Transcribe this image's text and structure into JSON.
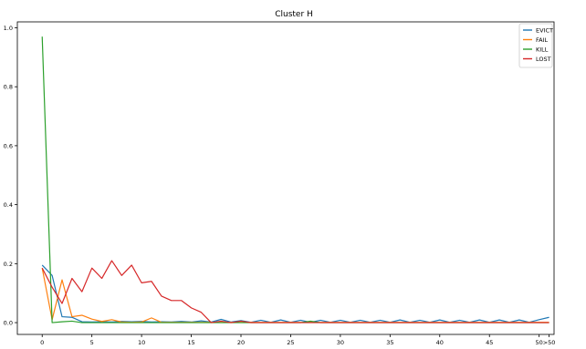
{
  "chart_data": {
    "type": "line",
    "title": "Cluster H",
    "xlabel": "",
    "ylabel": "",
    "x": [
      0,
      1,
      2,
      3,
      4,
      5,
      6,
      7,
      8,
      9,
      10,
      11,
      12,
      13,
      14,
      15,
      16,
      17,
      18,
      19,
      20,
      21,
      22,
      23,
      24,
      25,
      26,
      27,
      28,
      29,
      30,
      31,
      32,
      33,
      34,
      35,
      36,
      37,
      38,
      39,
      40,
      41,
      42,
      43,
      44,
      45,
      46,
      47,
      48,
      49,
      50,
      51
    ],
    "xlim": [
      -2.5,
      51.5
    ],
    "ylim": [
      -0.04,
      1.02
    ],
    "xticks": [
      {
        "value": 0,
        "label": "0"
      },
      {
        "value": 5,
        "label": "5"
      },
      {
        "value": 10,
        "label": "10"
      },
      {
        "value": 15,
        "label": "15"
      },
      {
        "value": 20,
        "label": "20"
      },
      {
        "value": 25,
        "label": "25"
      },
      {
        "value": 30,
        "label": "30"
      },
      {
        "value": 35,
        "label": "35"
      },
      {
        "value": 40,
        "label": "40"
      },
      {
        "value": 45,
        "label": "45"
      },
      {
        "value": 50,
        "label": "50"
      },
      {
        "value": 51,
        "label": ">50"
      }
    ],
    "yticks": [
      {
        "value": 0.0,
        "label": "0.0"
      },
      {
        "value": 0.2,
        "label": "0.2"
      },
      {
        "value": 0.4,
        "label": "0.4"
      },
      {
        "value": 0.6,
        "label": "0.6"
      },
      {
        "value": 0.8,
        "label": "0.8"
      },
      {
        "value": 1.0,
        "label": "1.0"
      }
    ],
    "grid": false,
    "legend_position": "top-right",
    "series": [
      {
        "name": "EVICT",
        "color": "#1f77b4",
        "values": [
          0.195,
          0.16,
          0.02,
          0.018,
          0.003,
          0.002,
          0.003,
          0.002,
          0.004,
          0.003,
          0.004,
          0.002,
          0.003,
          0.002,
          0.004,
          0.002,
          0.006,
          0.002,
          0.011,
          0.002,
          0.007,
          0.001,
          0.008,
          0.001,
          0.009,
          0.001,
          0.008,
          0.001,
          0.008,
          0.001,
          0.008,
          0.001,
          0.008,
          0.001,
          0.008,
          0.001,
          0.009,
          0.001,
          0.008,
          0.001,
          0.009,
          0.001,
          0.008,
          0.001,
          0.009,
          0.001,
          0.009,
          0.001,
          0.009,
          0.001,
          0.01,
          0.018
        ]
      },
      {
        "name": "FAIL",
        "color": "#ff7f0e",
        "values": [
          0.185,
          0.01,
          0.145,
          0.02,
          0.025,
          0.012,
          0.004,
          0.01,
          0.002,
          0.001,
          0.002,
          0.016,
          0.001,
          0.001,
          0.001,
          0.001,
          0.001,
          0.001,
          0.001,
          0.001,
          0.001,
          0.001,
          0.001,
          0.001,
          0.001,
          0.001,
          0.001,
          0.001,
          0.001,
          0.001,
          0.001,
          0.001,
          0.001,
          0.001,
          0.001,
          0.001,
          0.001,
          0.001,
          0.001,
          0.001,
          0.001,
          0.001,
          0.001,
          0.001,
          0.001,
          0.001,
          0.001,
          0.001,
          0.001,
          0.001,
          0.001,
          0.001
        ]
      },
      {
        "name": "KILL",
        "color": "#2ca02c",
        "values": [
          0.97,
          0.0,
          0.003,
          0.005,
          0.0,
          0.0,
          0.0,
          0.0,
          0.0,
          0.0,
          0.0,
          0.0,
          0.0,
          0.0,
          0.0,
          0.0,
          0.0,
          0.0,
          0.0,
          0.0,
          0.0,
          0.0,
          0.0,
          0.0,
          0.0,
          0.0,
          0.0,
          0.005,
          0.0,
          0.0,
          0.0,
          0.0,
          0.0,
          0.0,
          0.0,
          0.0,
          0.0,
          0.0,
          0.0,
          0.0,
          0.0,
          0.0,
          0.0,
          0.0,
          0.0,
          0.0,
          0.0,
          0.0,
          0.0,
          0.0,
          0.0,
          0.0
        ]
      },
      {
        "name": "LOST",
        "color": "#d62728",
        "values": [
          0.185,
          0.12,
          0.065,
          0.15,
          0.105,
          0.185,
          0.15,
          0.21,
          0.16,
          0.195,
          0.135,
          0.14,
          0.09,
          0.075,
          0.075,
          0.05,
          0.035,
          0.0,
          0.005,
          0.0,
          0.005,
          0.0,
          0.0,
          0.0,
          0.0,
          0.0,
          0.0,
          0.0,
          0.0,
          0.0,
          0.0,
          0.0,
          0.0,
          0.0,
          0.0,
          0.0,
          0.0,
          0.0,
          0.0,
          0.0,
          0.0,
          0.0,
          0.0,
          0.0,
          0.0,
          0.0,
          0.0,
          0.0,
          0.0,
          0.0,
          0.0,
          0.0
        ]
      }
    ]
  }
}
